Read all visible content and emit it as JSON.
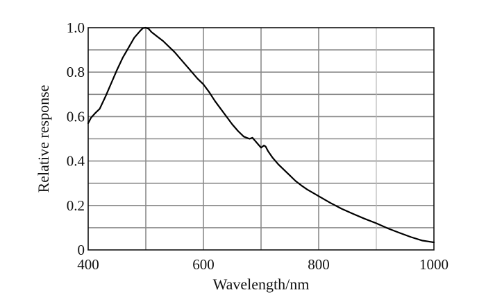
{
  "chart_data": {
    "type": "line",
    "xlabel": "Wavelength/nm",
    "ylabel": "Relative response",
    "xlim": [
      400,
      1000
    ],
    "ylim": [
      0,
      1.0
    ],
    "x_ticks": [
      400,
      600,
      800,
      1000
    ],
    "x_tick_labels": [
      "400",
      "600",
      "800",
      "1000"
    ],
    "x_gridlines": [
      500,
      600,
      700,
      800,
      900
    ],
    "y_ticks": [
      0,
      0.2,
      0.4,
      0.6,
      0.8,
      1.0
    ],
    "y_tick_labels": [
      "0",
      "0.2",
      "0.4",
      "0.6",
      "0.8",
      "1.0"
    ],
    "y_gridlines": [
      0.1,
      0.2,
      0.3,
      0.4,
      0.5,
      0.6,
      0.7,
      0.8,
      0.9
    ],
    "grid": true,
    "series": [
      {
        "x": [
          400,
          405,
          412,
          420,
          430,
          440,
          450,
          460,
          470,
          480,
          490,
          495,
          500,
          505,
          510,
          520,
          530,
          540,
          550,
          560,
          570,
          580,
          590,
          600,
          610,
          620,
          630,
          640,
          650,
          660,
          670,
          680,
          685,
          690,
          695,
          700,
          705,
          708,
          712,
          720,
          730,
          740,
          750,
          760,
          770,
          780,
          800,
          820,
          840,
          860,
          880,
          900,
          920,
          940,
          960,
          980,
          1000
        ],
        "y": [
          0.57,
          0.595,
          0.615,
          0.635,
          0.69,
          0.75,
          0.81,
          0.865,
          0.91,
          0.955,
          0.985,
          0.998,
          1.0,
          0.995,
          0.98,
          0.96,
          0.94,
          0.915,
          0.89,
          0.86,
          0.83,
          0.8,
          0.77,
          0.745,
          0.71,
          0.67,
          0.635,
          0.6,
          0.565,
          0.535,
          0.51,
          0.5,
          0.505,
          0.49,
          0.475,
          0.46,
          0.47,
          0.465,
          0.445,
          0.415,
          0.385,
          0.36,
          0.335,
          0.31,
          0.29,
          0.272,
          0.242,
          0.212,
          0.185,
          0.162,
          0.14,
          0.12,
          0.097,
          0.077,
          0.058,
          0.042,
          0.034
        ]
      }
    ]
  }
}
